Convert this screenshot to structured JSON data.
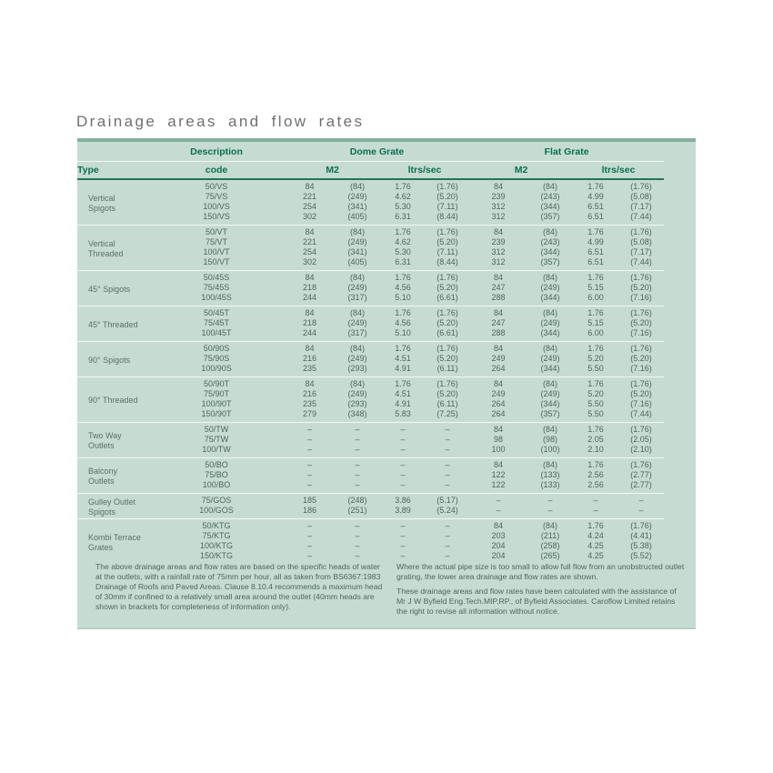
{
  "page": {
    "title": "Drainage areas and flow rates"
  },
  "colors": {
    "panel_background": "#c6dcd2",
    "header_text_green": "#0b6e51",
    "body_text_green": "#4c665c",
    "title_gray": "#6f6f6f",
    "panel_top_border": "#84b1a0",
    "header_rule_green": "#23745a"
  },
  "table": {
    "header": {
      "description": "Description",
      "dome": "Dome Grate",
      "flat": "Flat Grate"
    },
    "sub_headers": [
      "Type",
      "code",
      "M2",
      "ltrs/sec",
      "M2",
      "ltrs/sec"
    ],
    "groups": [
      {
        "label_lines": [
          "Vertical",
          "Spigots"
        ],
        "rows": [
          {
            "code": "50/VS",
            "values": [
              "84",
              "(84)",
              "1.76",
              "(1.76)",
              "84",
              "(84)",
              "1.76",
              "(1.76)"
            ]
          },
          {
            "code": "75/VS",
            "values": [
              "221",
              "(249)",
              "4.62",
              "(5.20)",
              "239",
              "(243)",
              "4.99",
              "(5.08)"
            ]
          },
          {
            "code": "100/VS",
            "values": [
              "254",
              "(341)",
              "5.30",
              "(7.11)",
              "312",
              "(344)",
              "6.51",
              "(7.17)"
            ]
          },
          {
            "code": "150/VS",
            "values": [
              "302",
              "(405)",
              "6.31",
              "(8.44)",
              "312",
              "(357)",
              "6.51",
              "(7.44)"
            ]
          }
        ]
      },
      {
        "label_lines": [
          "Vertical",
          "Threaded"
        ],
        "rows": [
          {
            "code": "50/VT",
            "values": [
              "84",
              "(84)",
              "1.76",
              "(1.76)",
              "84",
              "(84)",
              "1.76",
              "(1.76)"
            ]
          },
          {
            "code": "75/VT",
            "values": [
              "221",
              "(249)",
              "4.62",
              "(5.20)",
              "239",
              "(243)",
              "4.99",
              "(5.08)"
            ]
          },
          {
            "code": "100/VT",
            "values": [
              "254",
              "(341)",
              "5.30",
              "(7.11)",
              "312",
              "(344)",
              "6.51",
              "(7.17)"
            ]
          },
          {
            "code": "150/VT",
            "values": [
              "302",
              "(405)",
              "6.31",
              "(8.44)",
              "312",
              "(357)",
              "6.51",
              "(7.44)"
            ]
          }
        ]
      },
      {
        "label_lines": [
          "45° Spigots"
        ],
        "rows": [
          {
            "code": "50/45S",
            "values": [
              "84",
              "(84)",
              "1.76",
              "(1.76)",
              "84",
              "(84)",
              "1.76",
              "(1.76)"
            ]
          },
          {
            "code": "75/45S",
            "values": [
              "218",
              "(249)",
              "4.56",
              "(5.20)",
              "247",
              "(249)",
              "5.15",
              "(5.20)"
            ]
          },
          {
            "code": "100/45S",
            "values": [
              "244",
              "(317)",
              "5.10",
              "(6.61)",
              "288",
              "(344)",
              "6.00",
              "(7.16)"
            ]
          }
        ]
      },
      {
        "label_lines": [
          "45° Threaded"
        ],
        "rows": [
          {
            "code": "50/45T",
            "values": [
              "84",
              "(84)",
              "1.76",
              "(1.76)",
              "84",
              "(84)",
              "1.76",
              "(1.76)"
            ]
          },
          {
            "code": "75/45T",
            "values": [
              "218",
              "(249)",
              "4.56",
              "(5.20)",
              "247",
              "(249)",
              "5.15",
              "(5.20)"
            ]
          },
          {
            "code": "100/45T",
            "values": [
              "244",
              "(317)",
              "5.10",
              "(6.61)",
              "288",
              "(344)",
              "6.00",
              "(7.16)"
            ]
          }
        ]
      },
      {
        "label_lines": [
          "90° Spigots"
        ],
        "rows": [
          {
            "code": "50/90S",
            "values": [
              "84",
              "(84)",
              "1.76",
              "(1.76)",
              "84",
              "(84)",
              "1.76",
              "(1.76)"
            ]
          },
          {
            "code": "75/90S",
            "values": [
              "216",
              "(249)",
              "4.51",
              "(5.20)",
              "249",
              "(249)",
              "5.20",
              "(5.20)"
            ]
          },
          {
            "code": "100/90S",
            "values": [
              "235",
              "(293)",
              "4.91",
              "(6.11)",
              "264",
              "(344)",
              "5.50",
              "(7.16)"
            ]
          }
        ]
      },
      {
        "label_lines": [
          "90° Threaded"
        ],
        "rows": [
          {
            "code": "50/90T",
            "values": [
              "84",
              "(84)",
              "1.76",
              "(1.76)",
              "84",
              "(84)",
              "1.76",
              "(1.76)"
            ]
          },
          {
            "code": "75/90T",
            "values": [
              "216",
              "(249)",
              "4.51",
              "(5.20)",
              "249",
              "(249)",
              "5.20",
              "(5.20)"
            ]
          },
          {
            "code": "100/90T",
            "values": [
              "235",
              "(293)",
              "4.91",
              "(6.11)",
              "264",
              "(344)",
              "5.50",
              "(7.16)"
            ]
          },
          {
            "code": "150/90T",
            "values": [
              "279",
              "(348)",
              "5.83",
              "(7.25)",
              "264",
              "(357)",
              "5.50",
              "(7.44)"
            ]
          }
        ]
      },
      {
        "label_lines": [
          "Two Way",
          "Outlets"
        ],
        "rows": [
          {
            "code": "50/TW",
            "values": [
              "–",
              "–",
              "–",
              "–",
              "84",
              "(84)",
              "1.76",
              "(1.76)"
            ]
          },
          {
            "code": "75/TW",
            "values": [
              "–",
              "–",
              "–",
              "–",
              "98",
              "(98)",
              "2.05",
              "(2.05)"
            ]
          },
          {
            "code": "100/TW",
            "values": [
              "–",
              "–",
              "–",
              "–",
              "100",
              "(100)",
              "2.10",
              "(2.10)"
            ]
          }
        ]
      },
      {
        "label_lines": [
          "Balcony",
          "Outlets"
        ],
        "rows": [
          {
            "code": "50/BO",
            "values": [
              "–",
              "–",
              "–",
              "–",
              "84",
              "(84)",
              "1.76",
              "(1.76)"
            ]
          },
          {
            "code": "75/BO",
            "values": [
              "–",
              "–",
              "–",
              "–",
              "122",
              "(133)",
              "2.56",
              "(2.77)"
            ]
          },
          {
            "code": "100/BO",
            "values": [
              "–",
              "–",
              "–",
              "–",
              "122",
              "(133)",
              "2.56",
              "(2.77)"
            ]
          }
        ]
      },
      {
        "label_lines": [
          "Gulley Outlet",
          "Spigots"
        ],
        "rows": [
          {
            "code": "75/GOS",
            "values": [
              "185",
              "(248)",
              "3.86",
              "(5.17)",
              "–",
              "–",
              "–",
              "–"
            ]
          },
          {
            "code": "100/GOS",
            "values": [
              "186",
              "(251)",
              "3.89",
              "(5.24)",
              "–",
              "–",
              "–",
              "–"
            ]
          }
        ]
      },
      {
        "label_lines": [
          "Kombi Terrace",
          "Grates"
        ],
        "rows": [
          {
            "code": "50/KTG",
            "values": [
              "–",
              "–",
              "–",
              "–",
              "84",
              "(84)",
              "1.76",
              "(1.76)"
            ]
          },
          {
            "code": "75/KTG",
            "values": [
              "–",
              "–",
              "–",
              "–",
              "203",
              "(211)",
              "4.24",
              "(4.41)"
            ]
          },
          {
            "code": "100/KTG",
            "values": [
              "–",
              "–",
              "–",
              "–",
              "204",
              "(258)",
              "4.25",
              "(5.38)"
            ]
          },
          {
            "code": "150/KTG",
            "values": [
              "–",
              "–",
              "–",
              "–",
              "204",
              "(265)",
              "4.25",
              "(5.52)"
            ]
          }
        ]
      }
    ]
  },
  "footnotes": {
    "left": "The above  drainage areas and flow rates are based on the specific heads of water at the outlets, with a rainfall rate of 75mm per hour, all as taken from BS6367:1983 Drainage of Roofs and Paved Areas. Clause 8.10.4 recommends a maximum head of 30mm if confined to a relatively small area around the outlet (40mm heads are shown in brackets for completeness of information only).",
    "right_para_1": "Where the actual pipe size is too small to allow full flow from an unobstructed outlet grating, the lower area drainage and flow rates are shown.",
    "right_para_2": "These drainage areas and flow rates have been calculated with the assistance of Mr J W Byfield Eng.Tech.MIP,RP., of Byfield Associates. Caroflow Limited retains the right to revise all information without notice."
  }
}
